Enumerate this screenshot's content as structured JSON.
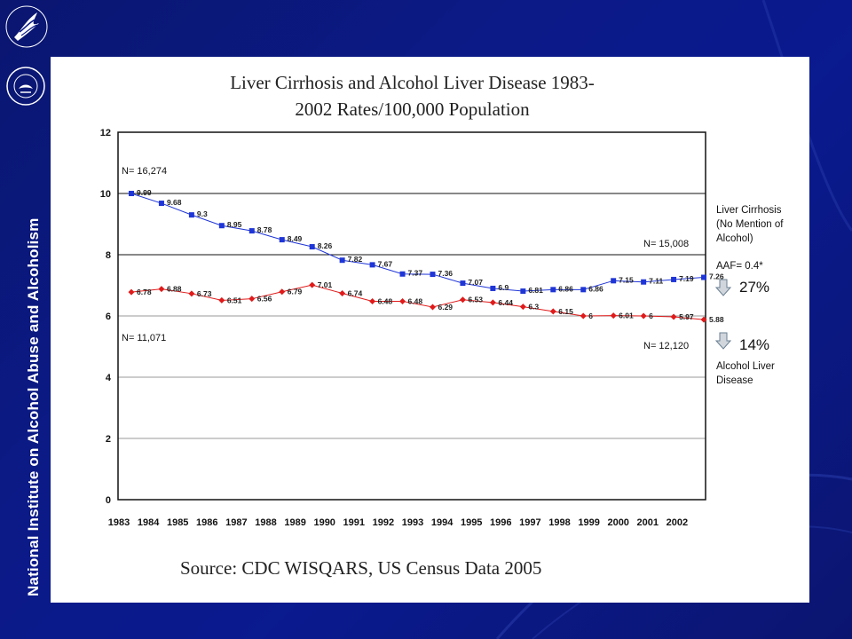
{
  "sidebar": {
    "org_name": "National Institute on Alcohol Abuse and Alcoholism"
  },
  "source_text": "Source: CDC WISQARS, US Census Data 2005",
  "chart_data": {
    "type": "line",
    "title_line1": "Liver Cirrhosis and Alcohol Liver Disease 1983-",
    "title_line2": "2002 Rates/100,000 Population",
    "ylim": [
      0,
      12
    ],
    "yticks": [
      0,
      2,
      4,
      6,
      8,
      10,
      12
    ],
    "x": [
      1983,
      1984,
      1985,
      1986,
      1987,
      1988,
      1989,
      1990,
      1991,
      1992,
      1993,
      1994,
      1995,
      1996,
      1997,
      1998,
      1999,
      2000,
      2001,
      2002
    ],
    "x_tick_labels": [
      "1983",
      "1984",
      "1985",
      "1986",
      "1987",
      "1988",
      "1989",
      "1990",
      "1991",
      "1992",
      "1993",
      "1994",
      "1995",
      "1996",
      "1997",
      "1998",
      "1999",
      "2000",
      "2001",
      "2002"
    ],
    "grid": "horizontal",
    "series": [
      {
        "name": "Liver Cirrhosis (No Mention of Alcohol)",
        "color": "#1f35d6",
        "marker": "square",
        "values": [
          10.0,
          9.68,
          9.3,
          8.95,
          8.78,
          8.49,
          8.26,
          7.82,
          7.67,
          7.37,
          7.36,
          7.07,
          6.9,
          6.81,
          6.86,
          6.86,
          7.15,
          7.11,
          7.19,
          7.26
        ],
        "labels": [
          "9.99",
          "9.68",
          "9.3",
          "8.95",
          "8.78",
          "8.49",
          "8.26",
          "7.82",
          "7.67",
          "7.37",
          "7.36",
          "7.07",
          "6.9",
          "6.81",
          "6.86",
          "6.86",
          "7.15",
          "7.11",
          "7.19",
          "7.26"
        ]
      },
      {
        "name": "Alcohol Liver Disease",
        "color": "#e01a1a",
        "marker": "diamond",
        "values": [
          6.78,
          6.88,
          6.73,
          6.51,
          6.56,
          6.79,
          7.01,
          6.74,
          6.48,
          6.48,
          6.29,
          6.53,
          6.44,
          6.3,
          6.15,
          6.0,
          6.01,
          6.0,
          5.97,
          5.88
        ],
        "labels": [
          "6.78",
          "6.88",
          "6.73",
          "6.51",
          "6.56",
          "6.79",
          "7.01",
          "6.74",
          "6.48",
          "6.48",
          "6.29",
          "6.53",
          "6.44",
          "6.3",
          "6.15",
          "6",
          "6.01",
          "6",
          "5.97",
          "5.88"
        ]
      }
    ],
    "annotations": {
      "n_start_top": "N= 16,274",
      "n_end_top": "N= 15,008",
      "n_start_bottom": "N= 11,071",
      "n_end_bottom": "N= 12,120"
    },
    "legend": {
      "cirrhosis_lines": [
        "Liver Cirrhosis",
        "(No Mention of",
        "Alcohol)"
      ],
      "aaf": "AAF= 0.4*",
      "cirrhosis_pct": "27%",
      "ald_pct": "14%",
      "ald_lines": [
        "Alcohol Liver",
        "Disease"
      ]
    }
  }
}
